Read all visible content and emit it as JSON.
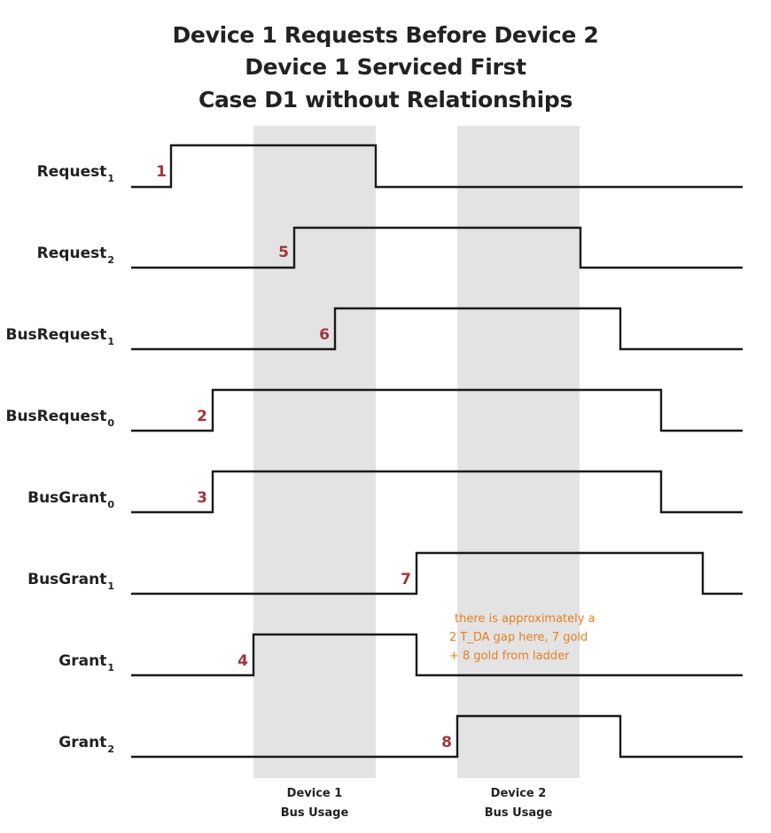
{
  "title": {
    "line1": "Device 1 Requests Before Device 2",
    "line2": "Device 1 Serviced First",
    "line3": "Case D1 without Relationships"
  },
  "regions": [
    {
      "label1": "Device 1",
      "label2": "Bus Usage"
    },
    {
      "label1": "Device 2",
      "label2": "Bus Usage"
    }
  ],
  "signals": [
    {
      "name": "Request",
      "sub": "1",
      "step": "1"
    },
    {
      "name": "Request",
      "sub": "2",
      "step": "5"
    },
    {
      "name": "BusRequest",
      "sub": "1",
      "step": "6"
    },
    {
      "name": "BusRequest",
      "sub": "0",
      "step": "2"
    },
    {
      "name": "BusGrant",
      "sub": "0",
      "step": "3"
    },
    {
      "name": "BusGrant",
      "sub": "1",
      "step": "7"
    },
    {
      "name": "Grant",
      "sub": "1",
      "step": "4"
    },
    {
      "name": "Grant",
      "sub": "2",
      "step": "8"
    }
  ],
  "note": {
    "line1": "there is approximately a",
    "line2": "2 T_DA gap here, 7 gold",
    "line3": "+ 8 gold from ladder"
  }
}
